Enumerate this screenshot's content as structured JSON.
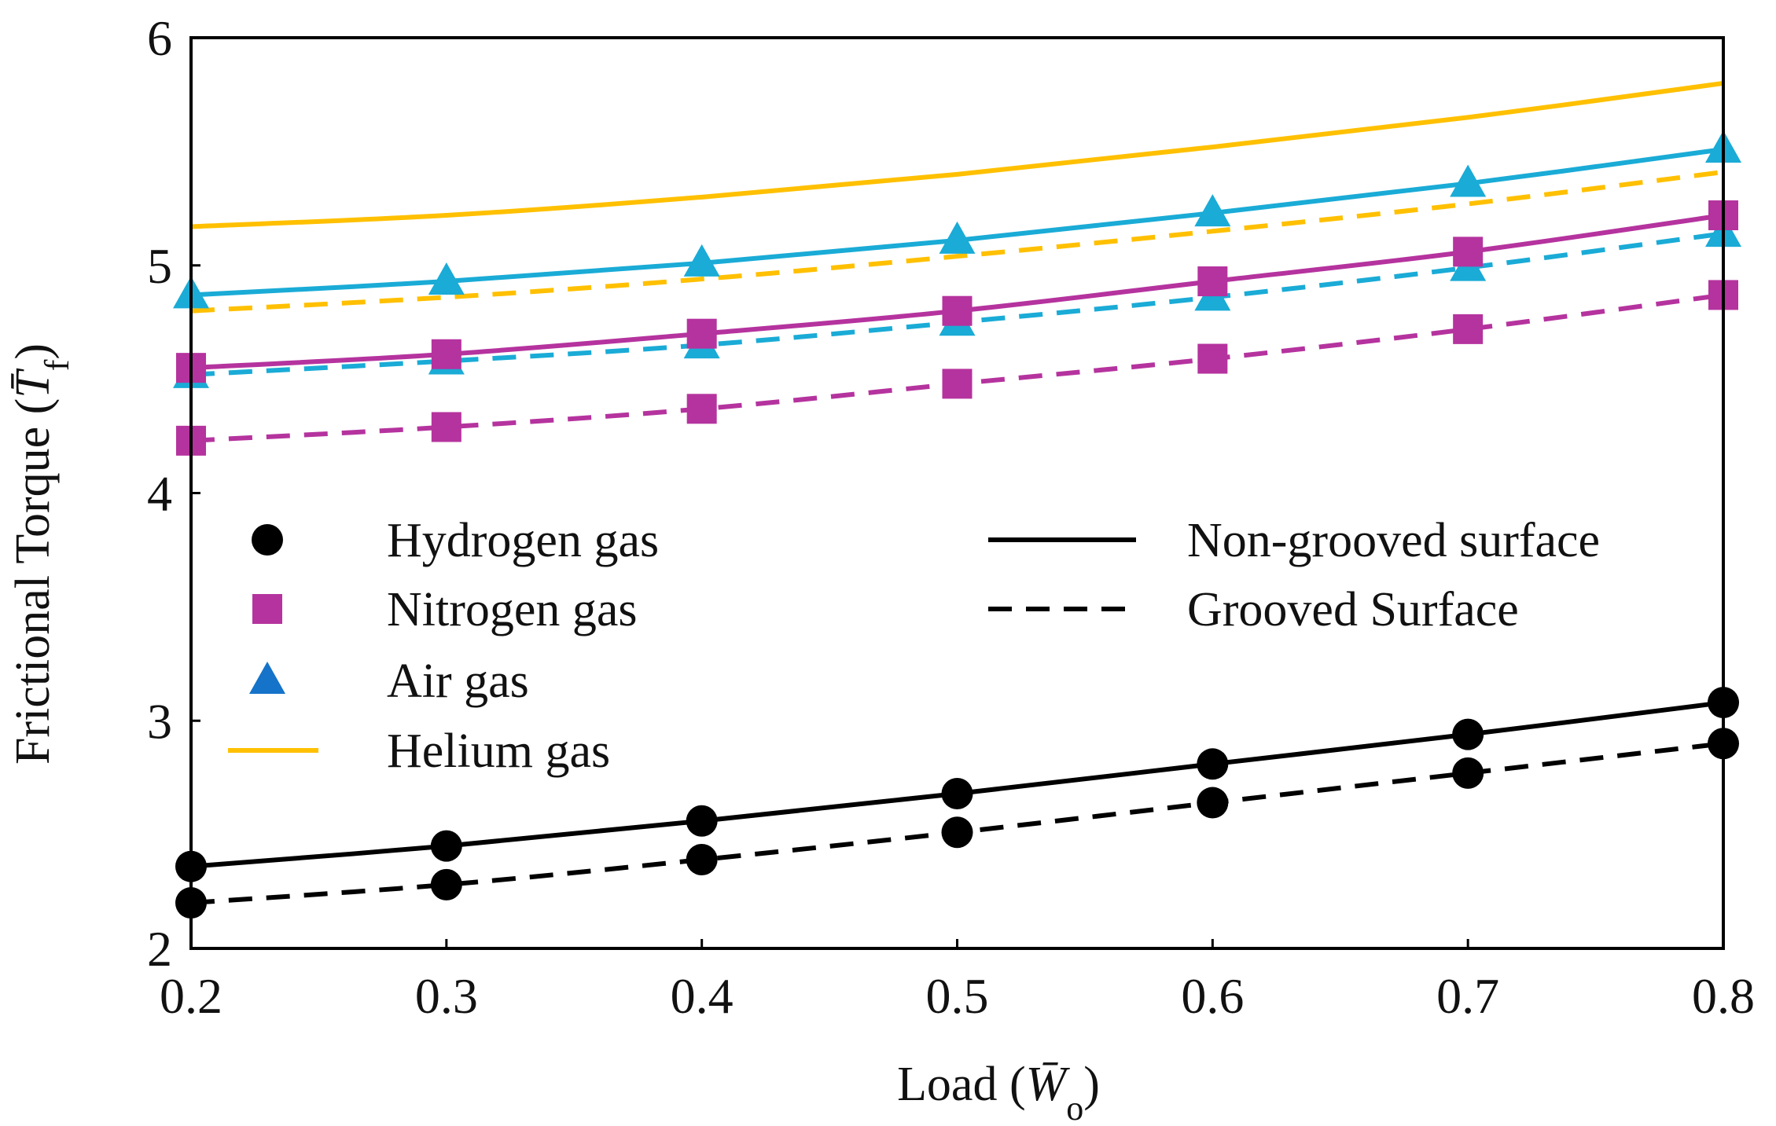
{
  "chart_data": {
    "type": "line",
    "title": "",
    "xlabel": "Load (W̄o)",
    "xlabel_parts": {
      "prefix": "Load (",
      "symbol": "W̄",
      "subscript": "o",
      "suffix": ")"
    },
    "ylabel": "Frictional Torque (T̄f)",
    "ylabel_parts": {
      "prefix": "Frictional Torque (",
      "symbol": "T̄",
      "subscript": "f",
      "suffix": ")"
    },
    "xlim": [
      0.2,
      0.8
    ],
    "ylim": [
      2,
      6
    ],
    "xticks": [
      "0.2",
      "0.3",
      "0.4",
      "0.5",
      "0.6",
      "0.7",
      "0.8"
    ],
    "yticks": [
      "2",
      "3",
      "4",
      "5",
      "6"
    ],
    "x": [
      0.2,
      0.3,
      0.4,
      0.5,
      0.6,
      0.7,
      0.8
    ],
    "series": [
      {
        "name": "Helium gas, non-grooved surface",
        "gas": "Helium gas",
        "surface": "non-grooved",
        "color": "#FFC000",
        "marker": "none",
        "values": [
          5.17,
          5.22,
          5.3,
          5.4,
          5.52,
          5.65,
          5.8
        ]
      },
      {
        "name": "Helium gas, grooved surface",
        "gas": "Helium gas",
        "surface": "grooved",
        "color": "#FFC000",
        "marker": "none",
        "values": [
          4.8,
          4.86,
          4.94,
          5.04,
          5.15,
          5.27,
          5.41
        ]
      },
      {
        "name": "Air gas, non-grooved surface",
        "gas": "Air gas",
        "surface": "non-grooved",
        "color": "#1AABD6",
        "marker": "triangle",
        "values": [
          4.87,
          4.93,
          5.01,
          5.11,
          5.23,
          5.36,
          5.51
        ]
      },
      {
        "name": "Air gas, grooved surface",
        "gas": "Air gas",
        "surface": "grooved",
        "color": "#1AABD6",
        "marker": "triangle",
        "values": [
          4.52,
          4.58,
          4.65,
          4.75,
          4.86,
          4.99,
          5.14
        ]
      },
      {
        "name": "Nitrogen gas, non-grooved surface",
        "gas": "Nitrogen gas",
        "surface": "non-grooved",
        "color": "#B5339E",
        "marker": "square",
        "values": [
          4.55,
          4.61,
          4.7,
          4.8,
          4.93,
          5.06,
          5.22
        ]
      },
      {
        "name": "Nitrogen gas, grooved surface",
        "gas": "Nitrogen gas",
        "surface": "grooved",
        "color": "#B5339E",
        "marker": "square",
        "values": [
          4.23,
          4.29,
          4.37,
          4.48,
          4.59,
          4.72,
          4.87
        ]
      },
      {
        "name": "Hydrogen gas, non-grooved surface",
        "gas": "Hydrogen gas",
        "surface": "non-grooved",
        "color": "#000000",
        "marker": "circle",
        "values": [
          2.36,
          2.45,
          2.56,
          2.68,
          2.81,
          2.94,
          3.08
        ]
      },
      {
        "name": "Hydrogen gas, grooved surface",
        "gas": "Hydrogen gas",
        "surface": "grooved",
        "color": "#000000",
        "marker": "circle",
        "values": [
          2.2,
          2.28,
          2.39,
          2.51,
          2.64,
          2.77,
          2.9
        ]
      }
    ],
    "legend": {
      "placement": "center-left",
      "gases": [
        {
          "label": "Hydrogen gas",
          "marker": "circle",
          "color": "#000000"
        },
        {
          "label": "Nitrogen gas",
          "marker": "square",
          "color": "#B5339E"
        },
        {
          "label": "Air gas",
          "marker": "triangle",
          "color": "#1573C9"
        },
        {
          "label": "Helium gas",
          "marker": "line",
          "color": "#FFC000"
        }
      ],
      "surfaces": [
        {
          "label": "Non-grooved surface",
          "style": "solid",
          "color": "#000000"
        },
        {
          "label": "Grooved Surface",
          "style": "dashed",
          "color": "#000000"
        }
      ]
    },
    "grid": false
  }
}
